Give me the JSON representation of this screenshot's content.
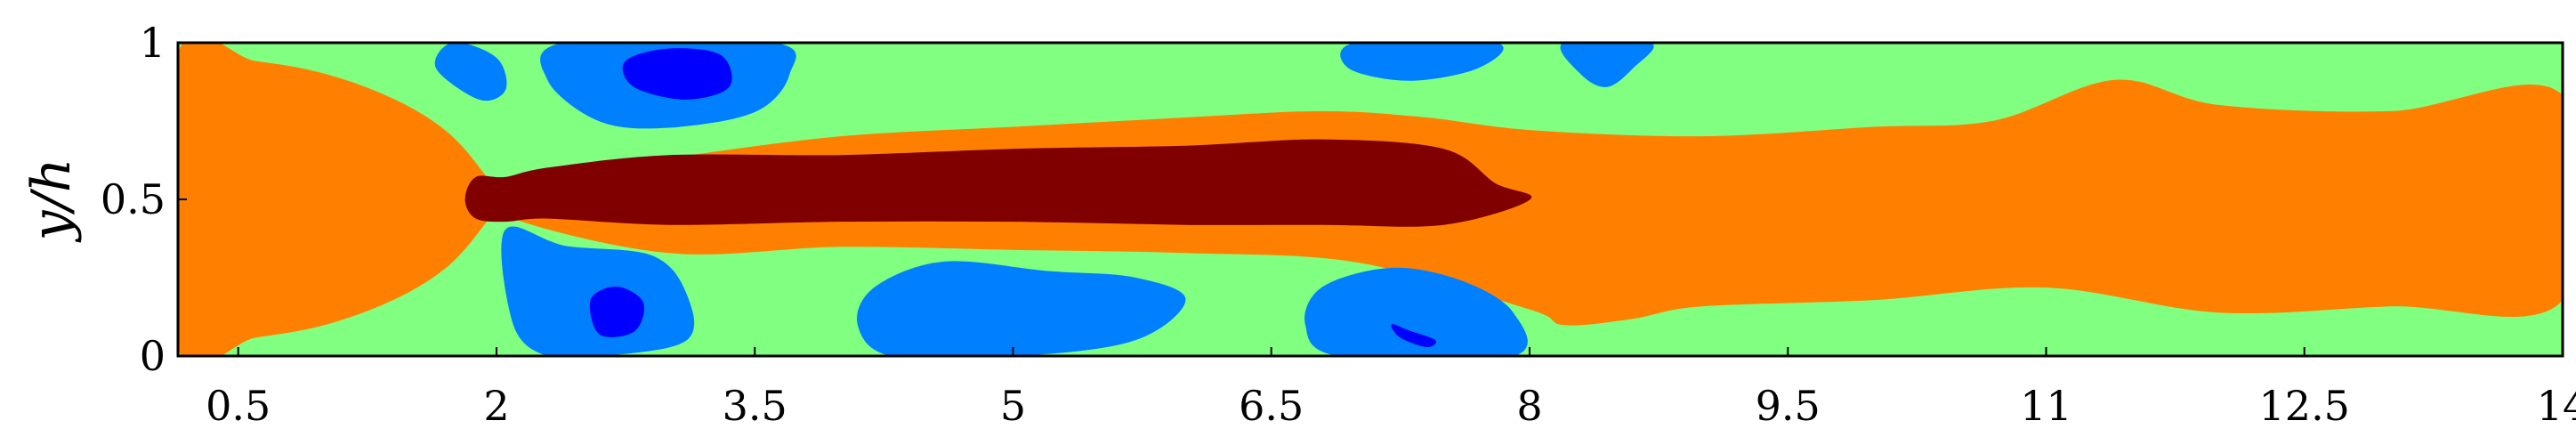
{
  "chart_data": {
    "type": "heatmap",
    "title": "",
    "xlabel": "",
    "ylabel": "y/h",
    "xlim": [
      0.15,
      14.0
    ],
    "ylim": [
      0,
      1
    ],
    "x_ticks": [
      "0.5",
      "2",
      "3.5",
      "5",
      "6.5",
      "8",
      "9.5",
      "11",
      "12.5",
      "14"
    ],
    "y_ticks": [
      "0",
      "0.5",
      "1"
    ],
    "x_tick_values": [
      0.5,
      2,
      3.5,
      5,
      6.5,
      8,
      9.5,
      11,
      12.5,
      14
    ],
    "y_tick_values": [
      0,
      0.5,
      1
    ],
    "colorbar": "none",
    "levels": [
      {
        "level": 1,
        "color": "#0000ff"
      },
      {
        "level": 2,
        "color": "#0080ff"
      },
      {
        "level": 3,
        "color": "#80ff80"
      },
      {
        "level": 4,
        "color": "#ff8000"
      },
      {
        "level": 5,
        "color": "#800000"
      }
    ],
    "background_level": 3,
    "regions": [
      {
        "level": 4,
        "points": [
          [
            0.15,
            0.96
          ],
          [
            0.6,
            0.94
          ],
          [
            1.0,
            0.9
          ],
          [
            1.4,
            0.82
          ],
          [
            1.7,
            0.72
          ],
          [
            1.9,
            0.6
          ],
          [
            2.0,
            0.5
          ],
          [
            1.9,
            0.4
          ],
          [
            1.7,
            0.28
          ],
          [
            1.4,
            0.18
          ],
          [
            1.0,
            0.1
          ],
          [
            0.6,
            0.06
          ],
          [
            0.15,
            0.03
          ]
        ]
      },
      {
        "level": 4,
        "points": [
          [
            2.05,
            0.55
          ],
          [
            3.0,
            0.63
          ],
          [
            4.0,
            0.7
          ],
          [
            5.0,
            0.73
          ],
          [
            6.0,
            0.76
          ],
          [
            6.8,
            0.78
          ],
          [
            7.4,
            0.76
          ],
          [
            8.0,
            0.72
          ],
          [
            9.0,
            0.7
          ],
          [
            10.0,
            0.73
          ],
          [
            10.7,
            0.75
          ],
          [
            11.4,
            0.88
          ],
          [
            12.0,
            0.8
          ],
          [
            13.0,
            0.78
          ],
          [
            14.0,
            0.83
          ],
          [
            14.0,
            0.18
          ],
          [
            13.0,
            0.16
          ],
          [
            12.0,
            0.14
          ],
          [
            11.0,
            0.22
          ],
          [
            10.0,
            0.18
          ],
          [
            9.0,
            0.16
          ],
          [
            8.6,
            0.12
          ],
          [
            8.2,
            0.1
          ],
          [
            8.0,
            0.15
          ],
          [
            7.0,
            0.3
          ],
          [
            6.0,
            0.33
          ],
          [
            5.0,
            0.34
          ],
          [
            4.0,
            0.35
          ],
          [
            3.0,
            0.33
          ],
          [
            2.05,
            0.45
          ]
        ]
      },
      {
        "level": 2,
        "points": [
          [
            2.4,
            1.0
          ],
          [
            2.3,
            0.88
          ],
          [
            2.6,
            0.75
          ],
          [
            3.0,
            0.73
          ],
          [
            3.5,
            0.78
          ],
          [
            3.7,
            0.9
          ],
          [
            3.6,
            1.0
          ]
        ]
      },
      {
        "level": 2,
        "points": [
          [
            1.75,
            1.0
          ],
          [
            2.0,
            0.95
          ],
          [
            2.05,
            0.85
          ],
          [
            1.9,
            0.82
          ],
          [
            1.65,
            0.92
          ]
        ]
      },
      {
        "level": 2,
        "points": [
          [
            2.05,
            0.4
          ],
          [
            2.4,
            0.35
          ],
          [
            2.9,
            0.32
          ],
          [
            3.1,
            0.2
          ],
          [
            3.1,
            0.05
          ],
          [
            2.6,
            0.0
          ],
          [
            2.3,
            0.0
          ],
          [
            2.1,
            0.1
          ]
        ]
      },
      {
        "level": 2,
        "points": [
          [
            4.2,
            0.22
          ],
          [
            4.6,
            0.3
          ],
          [
            5.2,
            0.27
          ],
          [
            5.7,
            0.25
          ],
          [
            6.0,
            0.18
          ],
          [
            5.7,
            0.05
          ],
          [
            5.0,
            0.0
          ],
          [
            4.3,
            0.0
          ],
          [
            4.1,
            0.1
          ]
        ]
      },
      {
        "level": 2,
        "points": [
          [
            6.8,
            0.22
          ],
          [
            7.2,
            0.28
          ],
          [
            7.6,
            0.24
          ],
          [
            7.9,
            0.14
          ],
          [
            7.9,
            0.0
          ],
          [
            6.9,
            0.0
          ],
          [
            6.7,
            0.1
          ]
        ]
      },
      {
        "level": 2,
        "points": [
          [
            7.0,
            1.0
          ],
          [
            6.95,
            0.92
          ],
          [
            7.3,
            0.88
          ],
          [
            7.7,
            0.92
          ],
          [
            7.8,
            1.0
          ]
        ]
      },
      {
        "level": 2,
        "points": [
          [
            8.2,
            1.0
          ],
          [
            8.3,
            0.9
          ],
          [
            8.45,
            0.86
          ],
          [
            8.6,
            0.92
          ],
          [
            8.7,
            1.0
          ]
        ]
      },
      {
        "level": 1,
        "points": [
          [
            2.75,
            0.94
          ],
          [
            3.0,
            0.98
          ],
          [
            3.3,
            0.96
          ],
          [
            3.35,
            0.86
          ],
          [
            3.1,
            0.82
          ],
          [
            2.8,
            0.86
          ]
        ]
      },
      {
        "level": 1,
        "points": [
          [
            2.55,
            0.18
          ],
          [
            2.7,
            0.22
          ],
          [
            2.85,
            0.17
          ],
          [
            2.8,
            0.08
          ],
          [
            2.6,
            0.07
          ]
        ]
      },
      {
        "level": 1,
        "points": [
          [
            7.2,
            0.1
          ],
          [
            7.3,
            0.08
          ],
          [
            7.45,
            0.05
          ],
          [
            7.4,
            0.03
          ],
          [
            7.25,
            0.06
          ]
        ]
      },
      {
        "level": 5,
        "points": [
          [
            1.88,
            0.57
          ],
          [
            2.05,
            0.57
          ],
          [
            2.3,
            0.6
          ],
          [
            3.0,
            0.64
          ],
          [
            4.0,
            0.64
          ],
          [
            5.0,
            0.66
          ],
          [
            6.0,
            0.67
          ],
          [
            6.8,
            0.69
          ],
          [
            7.5,
            0.66
          ],
          [
            7.8,
            0.55
          ],
          [
            8.0,
            0.5
          ],
          [
            7.5,
            0.42
          ],
          [
            6.8,
            0.42
          ],
          [
            6.0,
            0.42
          ],
          [
            5.0,
            0.43
          ],
          [
            4.0,
            0.43
          ],
          [
            3.0,
            0.42
          ],
          [
            2.3,
            0.44
          ],
          [
            2.05,
            0.43
          ],
          [
            1.88,
            0.44
          ],
          [
            1.82,
            0.5
          ]
        ]
      }
    ]
  }
}
